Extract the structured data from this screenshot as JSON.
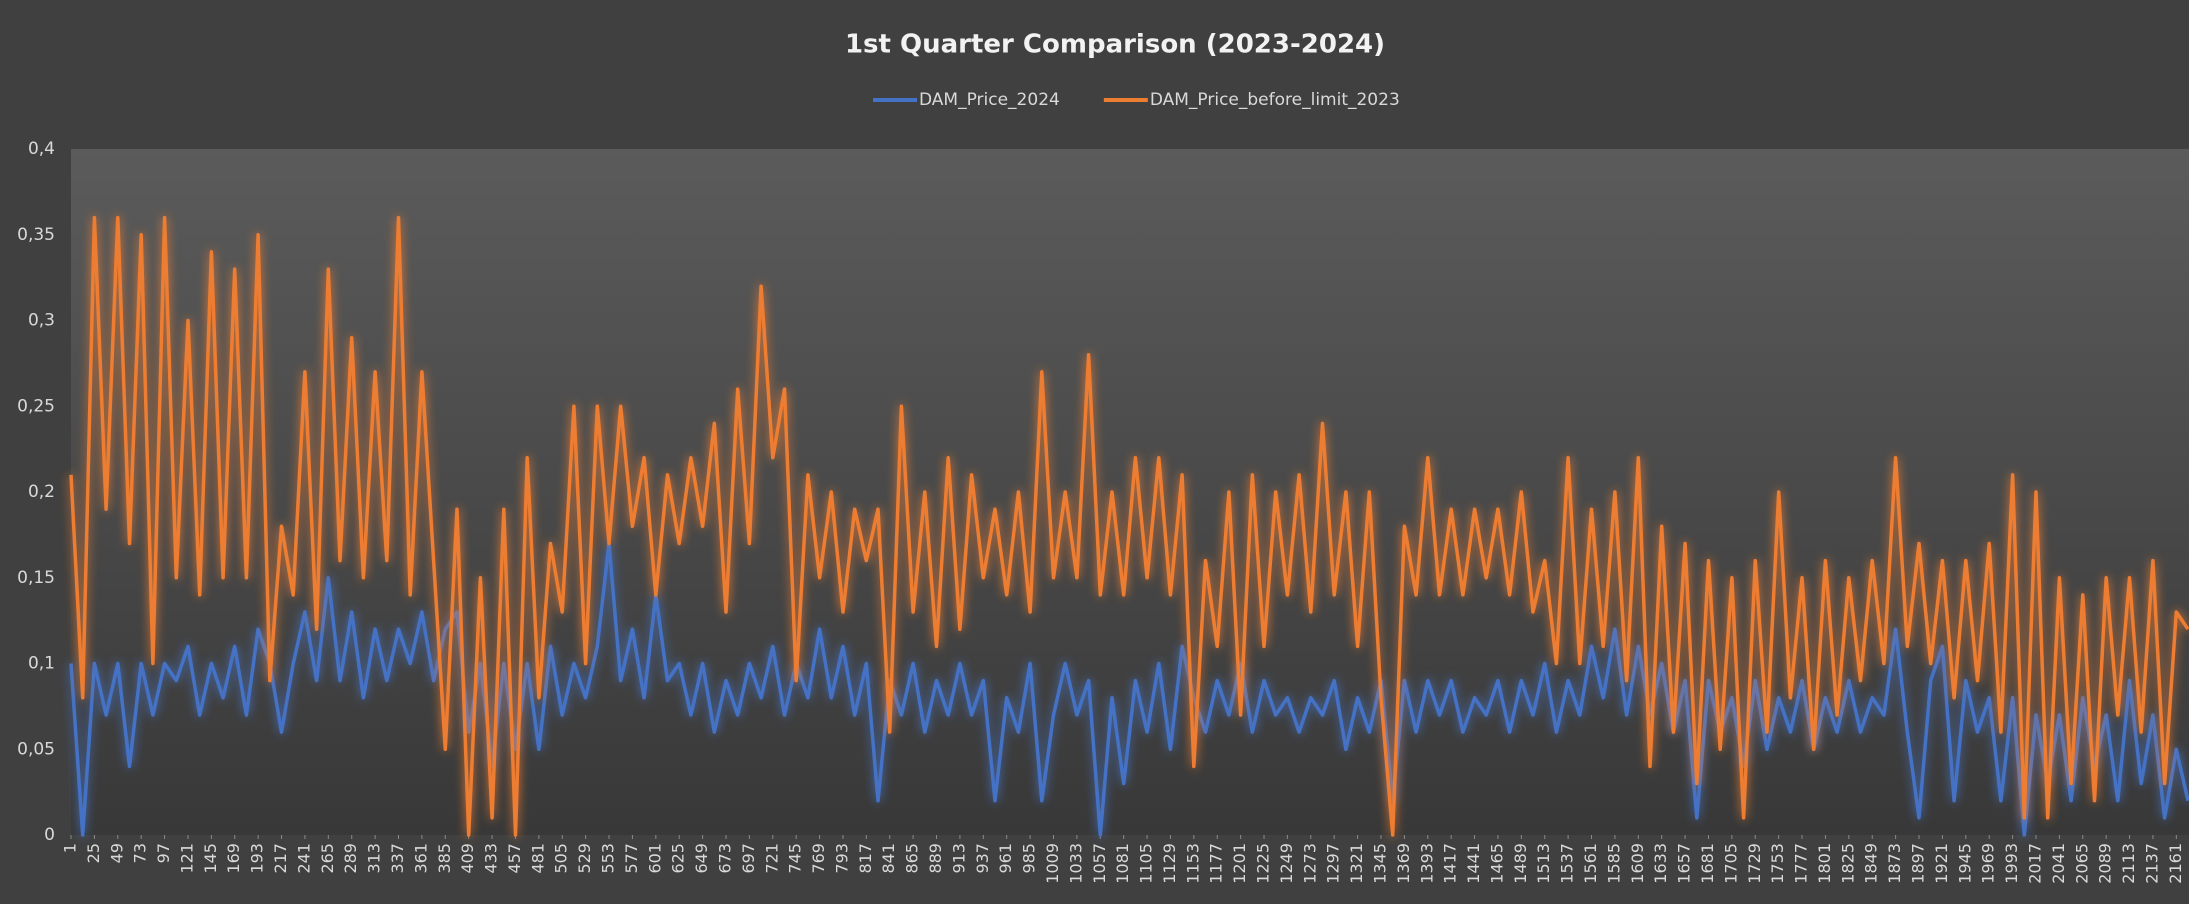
{
  "chart_data": {
    "type": "line",
    "title": "1st Quarter Comparison (2023-2024)",
    "x": [
      1,
      13,
      25,
      37,
      49,
      61,
      73,
      85,
      97,
      109,
      121,
      133,
      145,
      157,
      169,
      181,
      193,
      205,
      217,
      229,
      241,
      253,
      265,
      277,
      289,
      301,
      313,
      325,
      337,
      349,
      361,
      373,
      385,
      397,
      409,
      421,
      433,
      445,
      457,
      469,
      481,
      493,
      505,
      517,
      529,
      541,
      553,
      565,
      577,
      589,
      601,
      613,
      625,
      637,
      649,
      661,
      673,
      685,
      697,
      709,
      721,
      733,
      745,
      757,
      769,
      781,
      793,
      805,
      817,
      829,
      841,
      853,
      865,
      877,
      889,
      901,
      913,
      925,
      937,
      949,
      961,
      973,
      985,
      997,
      1009,
      1021,
      1033,
      1045,
      1057,
      1069,
      1081,
      1093,
      1105,
      1117,
      1129,
      1141,
      1153,
      1165,
      1177,
      1189,
      1201,
      1213,
      1225,
      1237,
      1249,
      1261,
      1273,
      1285,
      1297,
      1309,
      1321,
      1333,
      1345,
      1357,
      1369,
      1381,
      1393,
      1405,
      1417,
      1429,
      1441,
      1453,
      1465,
      1477,
      1489,
      1501,
      1513,
      1525,
      1537,
      1549,
      1561,
      1573,
      1585,
      1597,
      1609,
      1621,
      1633,
      1645,
      1657,
      1669,
      1681,
      1693,
      1705,
      1717,
      1729,
      1741,
      1753,
      1765,
      1777,
      1789,
      1801,
      1813,
      1825,
      1837,
      1849,
      1861,
      1873,
      1885,
      1897,
      1909,
      1921,
      1933,
      1945,
      1957,
      1969,
      1981,
      1993,
      2005,
      2017,
      2029,
      2041,
      2053,
      2065,
      2077,
      2089,
      2101,
      2113,
      2125,
      2137,
      2149,
      2161,
      2173
    ],
    "series": [
      {
        "name": "DAM_Price_2024",
        "color": "#4472c4",
        "values": [
          0.1,
          0.0,
          0.1,
          0.07,
          0.1,
          0.04,
          0.1,
          0.07,
          0.1,
          0.09,
          0.11,
          0.07,
          0.1,
          0.08,
          0.11,
          0.07,
          0.12,
          0.1,
          0.06,
          0.1,
          0.13,
          0.09,
          0.15,
          0.09,
          0.13,
          0.08,
          0.12,
          0.09,
          0.12,
          0.1,
          0.13,
          0.09,
          0.12,
          0.13,
          0.06,
          0.1,
          0.04,
          0.1,
          0.05,
          0.1,
          0.05,
          0.11,
          0.07,
          0.1,
          0.08,
          0.11,
          0.17,
          0.09,
          0.12,
          0.08,
          0.14,
          0.09,
          0.1,
          0.07,
          0.1,
          0.06,
          0.09,
          0.07,
          0.1,
          0.08,
          0.11,
          0.07,
          0.1,
          0.08,
          0.12,
          0.08,
          0.11,
          0.07,
          0.1,
          0.02,
          0.09,
          0.07,
          0.1,
          0.06,
          0.09,
          0.07,
          0.1,
          0.07,
          0.09,
          0.02,
          0.08,
          0.06,
          0.1,
          0.02,
          0.07,
          0.1,
          0.07,
          0.09,
          0.0,
          0.08,
          0.03,
          0.09,
          0.06,
          0.1,
          0.05,
          0.11,
          0.08,
          0.06,
          0.09,
          0.07,
          0.1,
          0.06,
          0.09,
          0.07,
          0.08,
          0.06,
          0.08,
          0.07,
          0.09,
          0.05,
          0.08,
          0.06,
          0.09,
          0.02,
          0.09,
          0.06,
          0.09,
          0.07,
          0.09,
          0.06,
          0.08,
          0.07,
          0.09,
          0.06,
          0.09,
          0.07,
          0.1,
          0.06,
          0.09,
          0.07,
          0.11,
          0.08,
          0.12,
          0.07,
          0.11,
          0.07,
          0.1,
          0.06,
          0.09,
          0.01,
          0.09,
          0.06,
          0.08,
          0.04,
          0.09,
          0.05,
          0.08,
          0.06,
          0.09,
          0.05,
          0.08,
          0.06,
          0.09,
          0.06,
          0.08,
          0.07,
          0.12,
          0.06,
          0.01,
          0.09,
          0.11,
          0.02,
          0.09,
          0.06,
          0.08,
          0.02,
          0.08,
          0.0,
          0.07,
          0.03,
          0.07,
          0.02,
          0.08,
          0.04,
          0.07,
          0.02,
          0.09,
          0.03,
          0.07,
          0.01,
          0.05,
          0.02
        ]
      },
      {
        "name": "DAM_Price_before_limit_2023",
        "color": "#ed7d31",
        "values": [
          0.21,
          0.08,
          0.36,
          0.19,
          0.36,
          0.17,
          0.35,
          0.1,
          0.36,
          0.15,
          0.3,
          0.14,
          0.34,
          0.15,
          0.33,
          0.15,
          0.35,
          0.09,
          0.18,
          0.14,
          0.27,
          0.12,
          0.33,
          0.16,
          0.29,
          0.15,
          0.27,
          0.16,
          0.36,
          0.14,
          0.27,
          0.16,
          0.05,
          0.19,
          0.0,
          0.15,
          0.01,
          0.19,
          0.0,
          0.22,
          0.08,
          0.17,
          0.13,
          0.25,
          0.1,
          0.25,
          0.17,
          0.25,
          0.18,
          0.22,
          0.14,
          0.21,
          0.17,
          0.22,
          0.18,
          0.24,
          0.13,
          0.26,
          0.17,
          0.32,
          0.22,
          0.26,
          0.09,
          0.21,
          0.15,
          0.2,
          0.13,
          0.19,
          0.16,
          0.19,
          0.06,
          0.25,
          0.13,
          0.2,
          0.11,
          0.22,
          0.12,
          0.21,
          0.15,
          0.19,
          0.14,
          0.2,
          0.13,
          0.27,
          0.15,
          0.2,
          0.15,
          0.28,
          0.14,
          0.2,
          0.14,
          0.22,
          0.15,
          0.22,
          0.14,
          0.21,
          0.04,
          0.16,
          0.11,
          0.2,
          0.07,
          0.21,
          0.11,
          0.2,
          0.14,
          0.21,
          0.13,
          0.24,
          0.14,
          0.2,
          0.11,
          0.2,
          0.08,
          0.0,
          0.18,
          0.14,
          0.22,
          0.14,
          0.19,
          0.14,
          0.19,
          0.15,
          0.19,
          0.14,
          0.2,
          0.13,
          0.16,
          0.1,
          0.22,
          0.1,
          0.19,
          0.11,
          0.2,
          0.09,
          0.22,
          0.04,
          0.18,
          0.06,
          0.17,
          0.03,
          0.16,
          0.05,
          0.15,
          0.01,
          0.16,
          0.06,
          0.2,
          0.08,
          0.15,
          0.05,
          0.16,
          0.07,
          0.15,
          0.09,
          0.16,
          0.1,
          0.22,
          0.11,
          0.17,
          0.1,
          0.16,
          0.08,
          0.16,
          0.09,
          0.17,
          0.06,
          0.21,
          0.01,
          0.2,
          0.01,
          0.15,
          0.03,
          0.14,
          0.02,
          0.15,
          0.07,
          0.15,
          0.06,
          0.16,
          0.03,
          0.13,
          0.12
        ]
      }
    ],
    "xlim": [
      1,
      2174
    ],
    "xticks": [
      1,
      25,
      49,
      73,
      97,
      121,
      145,
      169,
      193,
      217,
      241,
      265,
      289,
      313,
      337,
      361,
      385,
      409,
      433,
      457,
      481,
      505,
      529,
      553,
      577,
      601,
      625,
      649,
      673,
      697,
      721,
      745,
      769,
      793,
      817,
      841,
      865,
      889,
      913,
      937,
      961,
      985,
      1009,
      1033,
      1057,
      1081,
      1105,
      1129,
      1153,
      1177,
      1201,
      1225,
      1249,
      1273,
      1297,
      1321,
      1345,
      1369,
      1393,
      1417,
      1441,
      1465,
      1489,
      1513,
      1537,
      1561,
      1585,
      1609,
      1633,
      1657,
      1681,
      1705,
      1729,
      1753,
      1777,
      1801,
      1825,
      1849,
      1873,
      1897,
      1921,
      1945,
      1969,
      1993,
      2017,
      2041,
      2065,
      2089,
      2113,
      2137,
      2161
    ],
    "ylim": [
      0,
      0.4
    ],
    "yticks": [
      0,
      {
        "value": 0.05,
        "label": "0,05"
      },
      {
        "value": 0.1,
        "label": "0,1"
      },
      {
        "value": 0.15,
        "label": "0,15"
      },
      {
        "value": 0.2,
        "label": "0,2"
      },
      {
        "value": 0.25,
        "label": "0,25"
      },
      {
        "value": 0.3,
        "label": "0,3"
      },
      {
        "value": 0.35,
        "label": "0,35"
      },
      {
        "value": 0.4,
        "label": "0,4"
      }
    ],
    "legend": "top"
  }
}
